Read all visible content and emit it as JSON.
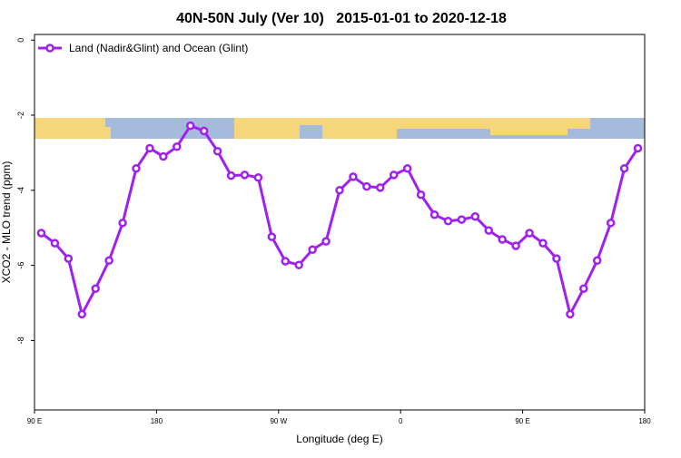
{
  "chart_data": {
    "type": "line",
    "title": "40N-50N July (Ver 10)   2015-01-01 to 2020-12-18",
    "xlabel": "Longitude (deg E)",
    "ylabel": "XCO2 - MLO trend (ppm)",
    "x": [
      95,
      105,
      115,
      125,
      135,
      145,
      155,
      165,
      175,
      185,
      195,
      205,
      215,
      225,
      235,
      245,
      255,
      265,
      275,
      285,
      295,
      305,
      315,
      325,
      335,
      345,
      355,
      365,
      375,
      385,
      395,
      405,
      415,
      425,
      435,
      445,
      455,
      465,
      475,
      485,
      495,
      505,
      515,
      525,
      535
    ],
    "series": [
      {
        "name": "Land (Nadir&Glint) and Ocean (Glint)",
        "color": "#a020f0",
        "values": [
          -5.14,
          -5.41,
          -5.82,
          -7.3,
          -6.62,
          -5.87,
          -4.87,
          -3.42,
          -2.88,
          -3.1,
          -2.84,
          -2.28,
          -2.42,
          -2.96,
          -3.61,
          -3.59,
          -3.66,
          -5.24,
          -5.89,
          -5.99,
          -5.58,
          -5.36,
          -4.0,
          -3.64,
          -3.9,
          -3.93,
          -3.59,
          -3.42,
          -4.12,
          -4.65,
          -4.82,
          -4.78,
          -4.7,
          -5.07,
          -5.31,
          -5.48,
          -5.14,
          -5.41,
          -5.82,
          -7.3,
          -6.62,
          -5.87,
          -4.87,
          -3.42,
          -2.88
        ]
      }
    ],
    "xlim": [
      90,
      540
    ],
    "xticks": [
      {
        "value": 90,
        "label": "90 E"
      },
      180,
      {
        "value": 270,
        "label": "90 W"
      },
      {
        "value": 360,
        "label": "0"
      },
      {
        "value": 450,
        "label": "90 E"
      },
      {
        "value": 540,
        "label": "180"
      }
    ],
    "ylim": [
      -9.85,
      0.15
    ],
    "yticks": [
      0,
      -2,
      -4,
      -6,
      -8
    ],
    "legend": "top-left"
  }
}
